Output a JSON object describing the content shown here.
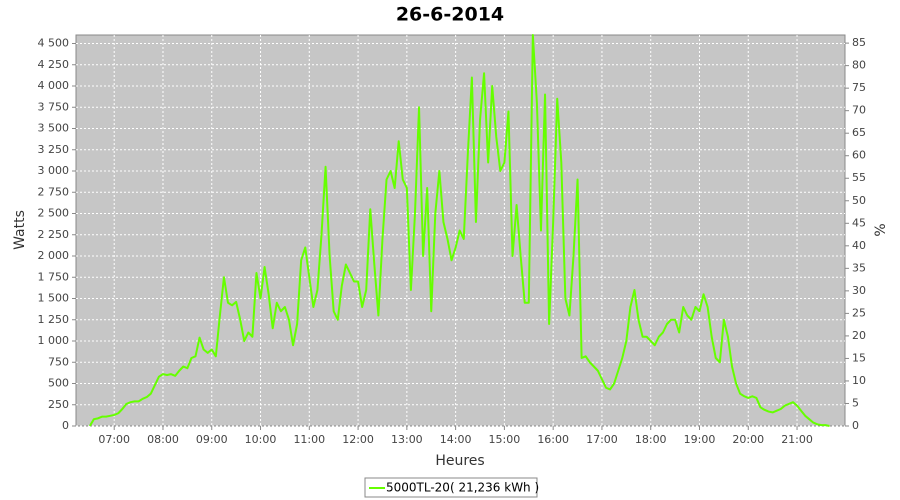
{
  "chart_data": {
    "type": "line",
    "title": "26-6-2014",
    "x_label": "Heures",
    "y_label": "Watts",
    "y2_label": "%",
    "x": [
      390,
      395,
      400,
      405,
      410,
      415,
      420,
      425,
      430,
      435,
      440,
      445,
      450,
      455,
      460,
      465,
      470,
      475,
      480,
      485,
      490,
      495,
      500,
      505,
      510,
      515,
      520,
      525,
      530,
      535,
      540,
      545,
      550,
      555,
      560,
      565,
      570,
      575,
      580,
      585,
      590,
      595,
      600,
      605,
      610,
      615,
      620,
      625,
      630,
      635,
      640,
      645,
      650,
      655,
      660,
      665,
      670,
      675,
      680,
      685,
      690,
      695,
      700,
      705,
      710,
      715,
      720,
      725,
      730,
      735,
      740,
      745,
      750,
      755,
      760,
      765,
      770,
      775,
      780,
      785,
      790,
      795,
      800,
      805,
      810,
      815,
      820,
      825,
      830,
      835,
      840,
      845,
      850,
      855,
      860,
      865,
      870,
      875,
      880,
      885,
      890,
      895,
      900,
      905,
      910,
      915,
      920,
      925,
      930,
      935,
      940,
      945,
      950,
      955,
      960,
      965,
      970,
      975,
      980,
      985,
      990,
      995,
      1000,
      1005,
      1010,
      1015,
      1020,
      1025,
      1030,
      1035,
      1040,
      1045,
      1050,
      1055,
      1060,
      1065,
      1070,
      1075,
      1080,
      1085,
      1090,
      1095,
      1100,
      1105,
      1110,
      1115,
      1120,
      1125,
      1130,
      1135,
      1140,
      1145,
      1150,
      1155,
      1160,
      1165,
      1170,
      1175,
      1180,
      1185,
      1190,
      1195,
      1200,
      1205,
      1210,
      1215,
      1220,
      1225,
      1230,
      1235,
      1240,
      1245,
      1250,
      1255,
      1260,
      1265,
      1270,
      1275,
      1280,
      1285,
      1290,
      1295,
      1300
    ],
    "series": [
      {
        "name": "5000TL-20( 21,236 kWh )",
        "color": "#66ff00",
        "values": [
          0,
          80,
          90,
          110,
          110,
          120,
          130,
          150,
          200,
          260,
          280,
          290,
          290,
          320,
          340,
          380,
          480,
          580,
          610,
          600,
          610,
          590,
          650,
          700,
          680,
          800,
          820,
          1040,
          900,
          860,
          900,
          820,
          1300,
          1750,
          1450,
          1420,
          1460,
          1250,
          1000,
          1100,
          1050,
          1800,
          1500,
          1870,
          1550,
          1150,
          1450,
          1350,
          1400,
          1250,
          950,
          1200,
          1950,
          2100,
          1750,
          1400,
          1600,
          2250,
          3050,
          2000,
          1350,
          1250,
          1650,
          1900,
          1800,
          1700,
          1700,
          1400,
          1600,
          2550,
          1900,
          1300,
          2200,
          2900,
          3000,
          2800,
          3350,
          2900,
          2800,
          1600,
          2500,
          3750,
          2000,
          2800,
          1350,
          2500,
          3000,
          2400,
          2200,
          1950,
          2100,
          2300,
          2200,
          3200,
          4100,
          2400,
          3600,
          4150,
          3100,
          4000,
          3400,
          3000,
          3100,
          3700,
          2000,
          2600,
          2000,
          1450,
          1450,
          4600,
          3800,
          2300,
          3900,
          1200,
          2400,
          3850,
          3100,
          1500,
          1300,
          2000,
          2900,
          800,
          820,
          750,
          700,
          650,
          550,
          450,
          430,
          500,
          650,
          800,
          1000,
          1400,
          1600,
          1250,
          1050,
          1050,
          1000,
          950,
          1050,
          1100,
          1200,
          1250,
          1250,
          1100,
          1400,
          1300,
          1250,
          1400,
          1350,
          1550,
          1400,
          1050,
          800,
          750,
          1250,
          1050,
          700,
          500,
          380,
          350,
          330,
          350,
          330,
          220,
          190,
          170,
          160,
          180,
          200,
          240,
          260,
          280,
          240,
          180,
          120,
          80,
          40,
          20,
          10,
          10,
          0
        ]
      }
    ],
    "xlim": [
      373,
      1319
    ],
    "xticks": [
      {
        "value": 420,
        "label": "07:00"
      },
      {
        "value": 480,
        "label": "08:00"
      },
      {
        "value": 540,
        "label": "09:00"
      },
      {
        "value": 600,
        "label": "10:00"
      },
      {
        "value": 660,
        "label": "11:00"
      },
      {
        "value": 720,
        "label": "12:00"
      },
      {
        "value": 780,
        "label": "13:00"
      },
      {
        "value": 840,
        "label": "14:00"
      },
      {
        "value": 900,
        "label": "15:00"
      },
      {
        "value": 960,
        "label": "16:00"
      },
      {
        "value": 1020,
        "label": "17:00"
      },
      {
        "value": 1080,
        "label": "18:00"
      },
      {
        "value": 1140,
        "label": "19:00"
      },
      {
        "value": 1200,
        "label": "20:00"
      },
      {
        "value": 1260,
        "label": "21:00"
      }
    ],
    "ylim": [
      0,
      4600
    ],
    "yticks": [
      0,
      250,
      500,
      750,
      {
        "value": 1000,
        "label": "1 000"
      },
      {
        "value": 1250,
        "label": "1 250"
      },
      {
        "value": 1500,
        "label": "1 500"
      },
      {
        "value": 1750,
        "label": "1 750"
      },
      {
        "value": 2000,
        "label": "2 000"
      },
      {
        "value": 2250,
        "label": "2 250"
      },
      {
        "value": 2500,
        "label": "2 500"
      },
      {
        "value": 2750,
        "label": "2 750"
      },
      {
        "value": 3000,
        "label": "3 000"
      },
      {
        "value": 3250,
        "label": "3 250"
      },
      {
        "value": 3500,
        "label": "3 500"
      },
      {
        "value": 3750,
        "label": "3 750"
      },
      {
        "value": 4000,
        "label": "4 000"
      },
      {
        "value": 4250,
        "label": "4 250"
      },
      {
        "value": 4500,
        "label": "4 500"
      }
    ],
    "y2lim": [
      0,
      86.8
    ],
    "y2ticks": [
      0,
      5,
      10,
      15,
      20,
      25,
      30,
      35,
      40,
      45,
      50,
      55,
      60,
      65,
      70,
      75,
      80,
      85
    ],
    "grid": true,
    "legend": "bottom"
  }
}
